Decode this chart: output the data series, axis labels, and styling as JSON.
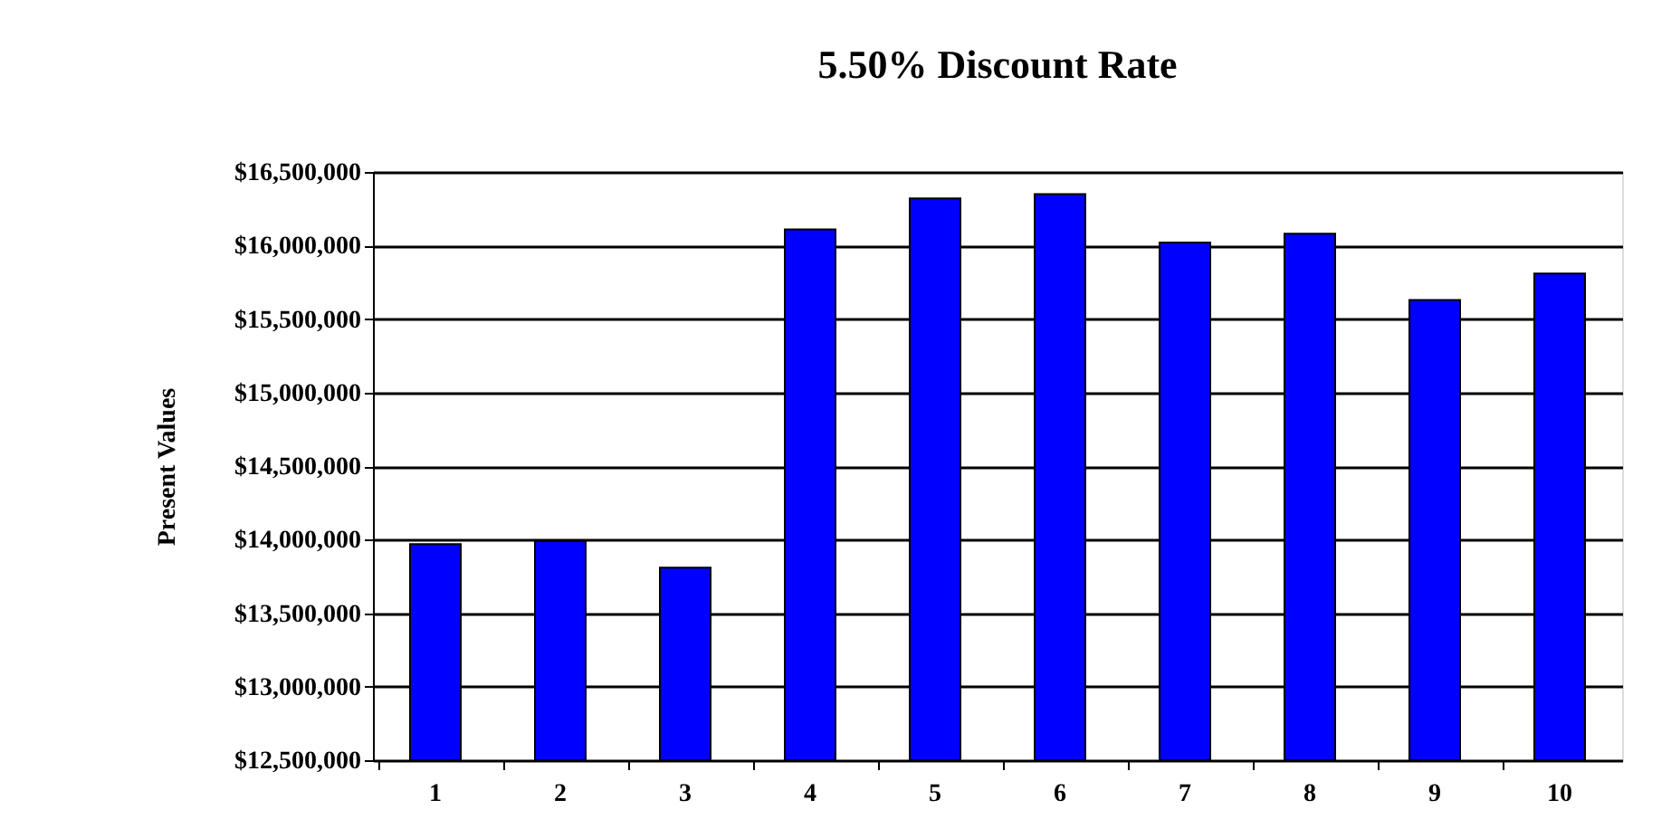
{
  "chart_data": {
    "type": "bar",
    "title": "5.50%  Discount Rate",
    "ylabel": "Present Values",
    "categories": [
      "1",
      "2",
      "3",
      "4",
      "5",
      "6",
      "7",
      "8",
      "9",
      "10"
    ],
    "values": [
      13970000,
      13990000,
      13810000,
      16110000,
      16320000,
      16350000,
      16020000,
      16080000,
      15630000,
      15810000
    ],
    "color": "#0000ff",
    "ylim": [
      12500000,
      16500000
    ],
    "yticks": [
      {
        "value": 12500000,
        "label": "$12,500,000"
      },
      {
        "value": 13000000,
        "label": "$13,000,000"
      },
      {
        "value": 13500000,
        "label": "$13,500,000"
      },
      {
        "value": 14000000,
        "label": "$14,000,000"
      },
      {
        "value": 14500000,
        "label": "$14,500,000"
      },
      {
        "value": 15000000,
        "label": "$15,000,000"
      },
      {
        "value": 15500000,
        "label": "$15,500,000"
      },
      {
        "value": 16000000,
        "label": "$16,000,000"
      },
      {
        "value": 16500000,
        "label": "$16,500,000"
      }
    ],
    "grid": "y"
  }
}
